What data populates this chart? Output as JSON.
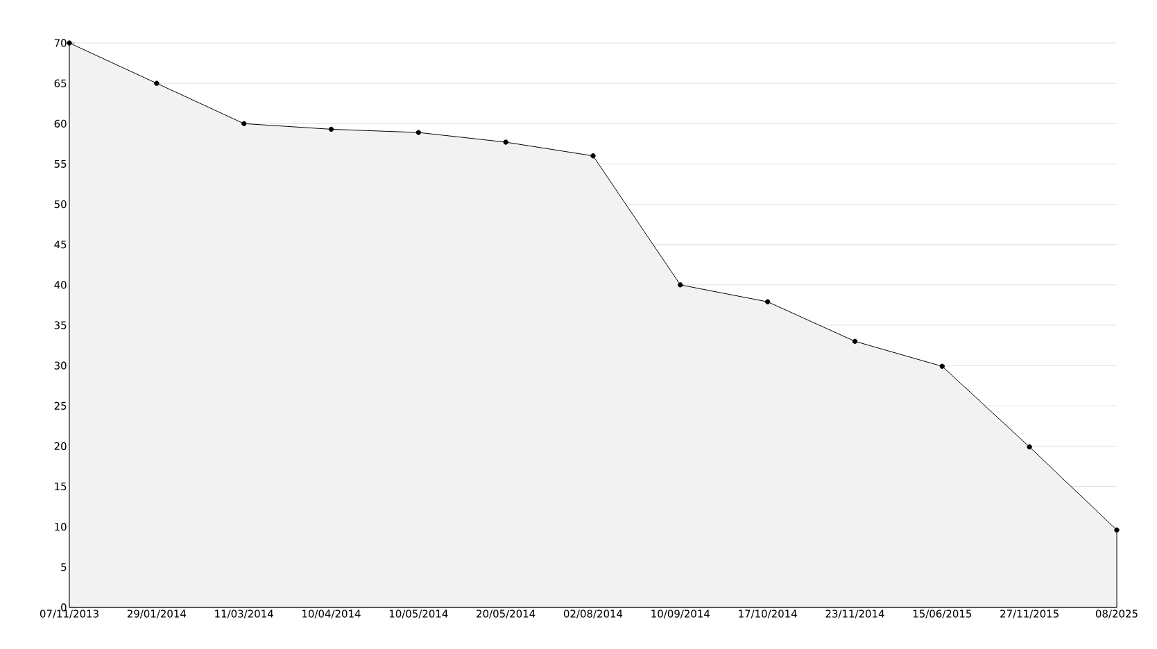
{
  "chart_data": {
    "type": "area",
    "categories": [
      "07/11/2013",
      "29/01/2014",
      "11/03/2014",
      "10/04/2014",
      "10/05/2014",
      "20/05/2014",
      "02/08/2014",
      "10/09/2014",
      "17/10/2014",
      "23/11/2014",
      "15/06/2015",
      "27/11/2015",
      "08/2025"
    ],
    "values": [
      70,
      65,
      60,
      59.3,
      58.9,
      57.7,
      56,
      40,
      37.9,
      33,
      29.9,
      19.9,
      9.6
    ],
    "color": "#000000",
    "ylim": [
      0,
      70
    ],
    "yticks": [
      0,
      5,
      10,
      15,
      20,
      25,
      30,
      35,
      40,
      45,
      50,
      55,
      60,
      65,
      70
    ],
    "grid": "y",
    "marker": "circle",
    "line_style": "solid"
  }
}
